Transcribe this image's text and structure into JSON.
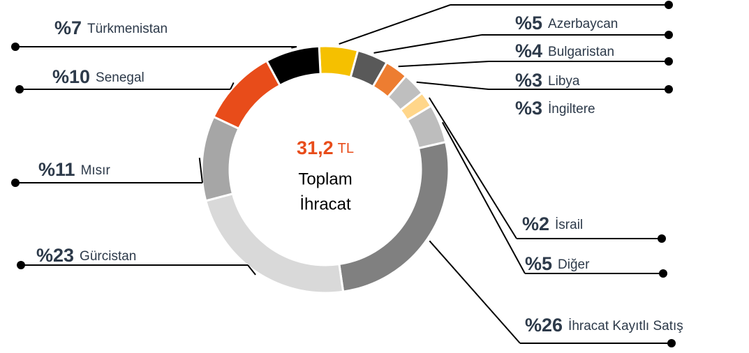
{
  "chart_data": {
    "type": "donut",
    "center_value": "31,2",
    "center_unit": "TL",
    "center_lines": [
      "Toplam",
      "İhracat"
    ],
    "categories": [
      "Azerbaycan",
      "Bulgaristan",
      "Libya",
      "İngiltere",
      "İsrail",
      "Diğer",
      "İhracat Kayıtlı Satış",
      "Gürcistan",
      "Mısır",
      "Senegal",
      "Türkmenistan"
    ],
    "values": [
      5,
      4,
      3,
      3,
      2,
      5,
      26,
      23,
      11,
      10,
      7
    ],
    "value_labels": [
      "%5",
      "%4",
      "%3",
      "%3",
      "%2",
      "%5",
      "%26",
      "%23",
      "%11",
      "%10",
      "%7"
    ],
    "colors": [
      "#f5c000",
      "#595959",
      "#ed7d31",
      "#bfbfbf",
      "#ffd68a",
      "#bdbdbd",
      "#808080",
      "#d9d9d9",
      "#a6a6a6",
      "#e84c1a",
      "#000000"
    ]
  }
}
